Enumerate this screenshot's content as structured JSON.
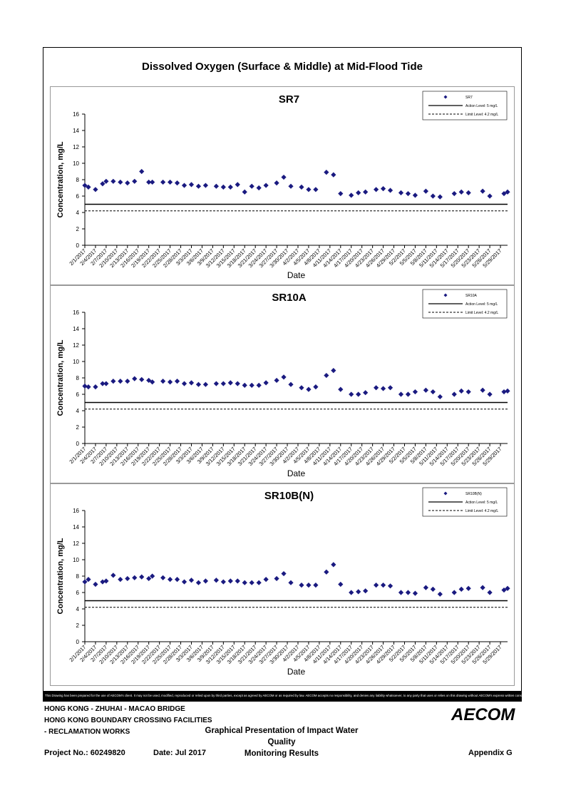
{
  "figure": {
    "title": "Dissolved Oxygen (Surface & Middle) at Mid-Flood Tide"
  },
  "chart_data": [
    {
      "type": "scatter",
      "title": "SR7",
      "xlabel": "Date",
      "ylabel": "Concentration, mg/L",
      "ylim": [
        0,
        16
      ],
      "yticks": [
        0,
        2,
        4,
        6,
        8,
        10,
        12,
        14,
        16
      ],
      "xlim": [
        "2017-02-01",
        "2017-05-31"
      ],
      "x_tick_labels": [
        "2/1/2017",
        "2/4/2017",
        "2/7/2017",
        "2/10/2017",
        "2/13/2017",
        "2/16/2017",
        "2/19/2017",
        "2/22/2017",
        "2/25/2017",
        "2/28/2017",
        "3/3/2017",
        "3/6/2017",
        "3/9/2017",
        "3/12/2017",
        "3/15/2017",
        "3/18/2017",
        "3/21/2017",
        "3/24/2017",
        "3/27/2017",
        "3/30/2017",
        "4/2/2017",
        "4/5/2017",
        "4/8/2017",
        "4/11/2017",
        "4/14/2017",
        "4/17/2017",
        "4/20/2017",
        "4/23/2017",
        "4/26/2017",
        "4/29/2017",
        "5/2/2017",
        "5/5/2017",
        "5/8/2017",
        "5/11/2017",
        "5/14/2017",
        "5/17/2017",
        "5/20/2017",
        "5/23/2017",
        "5/26/2017",
        "5/29/2017"
      ],
      "grid": false,
      "legend": "top-right",
      "legend_entries": [
        "SR7",
        "Action Level: 5 mg/L",
        "Limit Level: 4.2 mg/L"
      ],
      "series": [
        {
          "name": "SR7",
          "color": "#1a1a80",
          "x": [
            "2017-02-01",
            "2017-02-02",
            "2017-02-04",
            "2017-02-06",
            "2017-02-07",
            "2017-02-09",
            "2017-02-11",
            "2017-02-13",
            "2017-02-15",
            "2017-02-17",
            "2017-02-19",
            "2017-02-20",
            "2017-02-23",
            "2017-02-25",
            "2017-02-27",
            "2017-03-01",
            "2017-03-03",
            "2017-03-05",
            "2017-03-07",
            "2017-03-10",
            "2017-03-12",
            "2017-03-14",
            "2017-03-16",
            "2017-03-18",
            "2017-03-20",
            "2017-03-22",
            "2017-03-24",
            "2017-03-27",
            "2017-03-29",
            "2017-03-31",
            "2017-04-03",
            "2017-04-05",
            "2017-04-07",
            "2017-04-10",
            "2017-04-12",
            "2017-04-14",
            "2017-04-17",
            "2017-04-19",
            "2017-04-21",
            "2017-04-24",
            "2017-04-26",
            "2017-04-28",
            "2017-05-01",
            "2017-05-03",
            "2017-05-05",
            "2017-05-08",
            "2017-05-10",
            "2017-05-12",
            "2017-05-16",
            "2017-05-18",
            "2017-05-20",
            "2017-05-24",
            "2017-05-26",
            "2017-05-30",
            "2017-05-31"
          ],
          "y": [
            7.3,
            7.1,
            6.8,
            7.5,
            7.8,
            7.8,
            7.7,
            7.6,
            7.8,
            9.0,
            7.7,
            7.7,
            7.7,
            7.7,
            7.6,
            7.3,
            7.4,
            7.2,
            7.3,
            7.2,
            7.1,
            7.1,
            7.4,
            6.5,
            7.2,
            7.0,
            7.3,
            7.6,
            8.3,
            7.2,
            7.1,
            6.8,
            6.8,
            8.9,
            8.6,
            6.3,
            6.1,
            6.4,
            6.5,
            6.8,
            6.9,
            6.7,
            6.4,
            6.3,
            6.1,
            6.6,
            6.0,
            5.9,
            6.3,
            6.5,
            6.4,
            6.6,
            6.0,
            6.3,
            6.5
          ]
        }
      ],
      "reference_lines": [
        {
          "label": "Action Level: 5 mg/L",
          "value": 5,
          "style": "solid"
        },
        {
          "label": "Limit Level: 4.2 mg/L",
          "value": 4.2,
          "style": "dashed"
        }
      ]
    },
    {
      "type": "scatter",
      "title": "SR10A",
      "xlabel": "Date",
      "ylabel": "Concentration, mg/L",
      "ylim": [
        0,
        16
      ],
      "yticks": [
        0,
        2,
        4,
        6,
        8,
        10,
        12,
        14,
        16
      ],
      "xlim": [
        "2017-02-01",
        "2017-05-31"
      ],
      "x_tick_labels": [
        "2/1/2017",
        "2/4/2017",
        "2/7/2017",
        "2/10/2017",
        "2/13/2017",
        "2/16/2017",
        "2/19/2017",
        "2/22/2017",
        "2/25/2017",
        "2/28/2017",
        "3/3/2017",
        "3/6/2017",
        "3/9/2017",
        "3/12/2017",
        "3/15/2017",
        "3/18/2017",
        "3/21/2017",
        "3/24/2017",
        "3/27/2017",
        "3/30/2017",
        "4/2/2017",
        "4/5/2017",
        "4/8/2017",
        "4/11/2017",
        "4/14/2017",
        "4/17/2017",
        "4/20/2017",
        "4/23/2017",
        "4/26/2017",
        "4/29/2017",
        "5/2/2017",
        "5/5/2017",
        "5/8/2017",
        "5/11/2017",
        "5/14/2017",
        "5/17/2017",
        "5/20/2017",
        "5/23/2017",
        "5/26/2017",
        "5/29/2017"
      ],
      "grid": false,
      "legend": "top-right",
      "legend_entries": [
        "SR10A",
        "Action Level: 5 mg/L",
        "Limit Level: 4.2 mg/L"
      ],
      "series": [
        {
          "name": "SR10A",
          "color": "#1a1a80",
          "x": [
            "2017-02-01",
            "2017-02-02",
            "2017-02-04",
            "2017-02-06",
            "2017-02-07",
            "2017-02-09",
            "2017-02-11",
            "2017-02-13",
            "2017-02-15",
            "2017-02-17",
            "2017-02-19",
            "2017-02-20",
            "2017-02-23",
            "2017-02-25",
            "2017-02-27",
            "2017-03-01",
            "2017-03-03",
            "2017-03-05",
            "2017-03-07",
            "2017-03-10",
            "2017-03-12",
            "2017-03-14",
            "2017-03-16",
            "2017-03-18",
            "2017-03-20",
            "2017-03-22",
            "2017-03-24",
            "2017-03-27",
            "2017-03-29",
            "2017-03-31",
            "2017-04-03",
            "2017-04-05",
            "2017-04-07",
            "2017-04-10",
            "2017-04-12",
            "2017-04-14",
            "2017-04-17",
            "2017-04-19",
            "2017-04-21",
            "2017-04-24",
            "2017-04-26",
            "2017-04-28",
            "2017-05-01",
            "2017-05-03",
            "2017-05-05",
            "2017-05-08",
            "2017-05-10",
            "2017-05-12",
            "2017-05-16",
            "2017-05-18",
            "2017-05-20",
            "2017-05-24",
            "2017-05-26",
            "2017-05-30",
            "2017-05-31"
          ],
          "y": [
            7.0,
            6.9,
            6.9,
            7.3,
            7.3,
            7.6,
            7.6,
            7.6,
            7.9,
            7.8,
            7.7,
            7.5,
            7.6,
            7.5,
            7.6,
            7.3,
            7.4,
            7.2,
            7.2,
            7.3,
            7.3,
            7.4,
            7.3,
            7.1,
            7.1,
            7.1,
            7.4,
            7.7,
            8.1,
            7.2,
            6.8,
            6.6,
            6.9,
            8.3,
            8.9,
            6.6,
            6.0,
            6.0,
            6.2,
            6.8,
            6.7,
            6.8,
            6.0,
            6.0,
            6.3,
            6.5,
            6.3,
            5.7,
            6.0,
            6.4,
            6.3,
            6.5,
            6.0,
            6.3,
            6.4
          ]
        }
      ],
      "reference_lines": [
        {
          "label": "Action Level: 5 mg/L",
          "value": 5,
          "style": "solid"
        },
        {
          "label": "Limit Level: 4.2 mg/L",
          "value": 4.2,
          "style": "dashed"
        }
      ]
    },
    {
      "type": "scatter",
      "title": "SR10B(N)",
      "xlabel": "Date",
      "ylabel": "Concentration, mg/L",
      "ylim": [
        0,
        16
      ],
      "yticks": [
        0,
        2,
        4,
        6,
        8,
        10,
        12,
        14,
        16
      ],
      "xlim": [
        "2017-02-01",
        "2017-05-31"
      ],
      "x_tick_labels": [
        "2/1/2017",
        "2/4/2017",
        "2/7/2017",
        "2/10/2017",
        "2/13/2017",
        "2/16/2017",
        "2/19/2017",
        "2/22/2017",
        "2/25/2017",
        "2/28/2017",
        "3/3/2017",
        "3/6/2017",
        "3/9/2017",
        "3/12/2017",
        "3/15/2017",
        "3/18/2017",
        "3/21/2017",
        "3/24/2017",
        "3/27/2017",
        "3/30/2017",
        "4/2/2017",
        "4/5/2017",
        "4/8/2017",
        "4/11/2017",
        "4/14/2017",
        "4/17/2017",
        "4/20/2017",
        "4/23/2017",
        "4/26/2017",
        "4/29/2017",
        "5/2/2017",
        "5/5/2017",
        "5/8/2017",
        "5/11/2017",
        "5/14/2017",
        "5/17/2017",
        "5/20/2017",
        "5/23/2017",
        "5/26/2017",
        "5/29/2017"
      ],
      "grid": false,
      "legend": "top-right",
      "legend_entries": [
        "SR10B(N)",
        "Action Level: 5 mg/L",
        "Limit Level: 4.2 mg/L"
      ],
      "series": [
        {
          "name": "SR10B(N)",
          "color": "#1a1a80",
          "x": [
            "2017-02-01",
            "2017-02-02",
            "2017-02-04",
            "2017-02-06",
            "2017-02-07",
            "2017-02-09",
            "2017-02-11",
            "2017-02-13",
            "2017-02-15",
            "2017-02-17",
            "2017-02-19",
            "2017-02-20",
            "2017-02-23",
            "2017-02-25",
            "2017-02-27",
            "2017-03-01",
            "2017-03-03",
            "2017-03-05",
            "2017-03-07",
            "2017-03-10",
            "2017-03-12",
            "2017-03-14",
            "2017-03-16",
            "2017-03-18",
            "2017-03-20",
            "2017-03-22",
            "2017-03-24",
            "2017-03-27",
            "2017-03-29",
            "2017-03-31",
            "2017-04-03",
            "2017-04-05",
            "2017-04-07",
            "2017-04-10",
            "2017-04-12",
            "2017-04-14",
            "2017-04-17",
            "2017-04-19",
            "2017-04-21",
            "2017-04-24",
            "2017-04-26",
            "2017-04-28",
            "2017-05-01",
            "2017-05-03",
            "2017-05-05",
            "2017-05-08",
            "2017-05-10",
            "2017-05-12",
            "2017-05-16",
            "2017-05-18",
            "2017-05-20",
            "2017-05-24",
            "2017-05-26",
            "2017-05-30",
            "2017-05-31"
          ],
          "y": [
            7.3,
            7.6,
            7.0,
            7.3,
            7.4,
            8.1,
            7.6,
            7.7,
            7.8,
            7.9,
            7.7,
            8.0,
            7.8,
            7.6,
            7.6,
            7.3,
            7.5,
            7.2,
            7.4,
            7.5,
            7.3,
            7.4,
            7.4,
            7.2,
            7.2,
            7.2,
            7.6,
            7.7,
            8.3,
            7.2,
            6.9,
            6.9,
            6.9,
            8.5,
            9.4,
            7.0,
            6.0,
            6.1,
            6.2,
            6.9,
            6.9,
            6.8,
            6.0,
            6.0,
            5.9,
            6.6,
            6.4,
            5.8,
            6.0,
            6.4,
            6.5,
            6.6,
            6.0,
            6.3,
            6.5
          ]
        }
      ],
      "reference_lines": [
        {
          "label": "Action Level: 5 mg/L",
          "value": 5,
          "style": "solid"
        },
        {
          "label": "Limit Level: 4.2 mg/L",
          "value": 4.2,
          "style": "dashed"
        }
      ]
    }
  ],
  "disclaimer": "This Drawing has been prepared for the use of AECOM's client. It may not be used, modified, reproduced or relied upon by third parties, except as agreed by AECOM or as required by law. AECOM accepts no responsibility, and denies any liability whatsoever, to any party that uses or relies on this drawing without AECOM's express written consent.",
  "footer": {
    "project_line1": "HONG KONG - ZHUHAI - MACAO BRIDGE",
    "project_line2": "HONG KONG BOUNDARY CROSSING FACILITIES",
    "project_line3": "- RECLAMATION WORKS",
    "title_line1": "Graphical Presentation of Impact Water Quality",
    "title_line2": "Monitoring Results",
    "project_no": "Project No.: 60249820",
    "date": "Date: Jul 2017",
    "appendix": "Appendix G",
    "logo_text": "AECOM"
  }
}
